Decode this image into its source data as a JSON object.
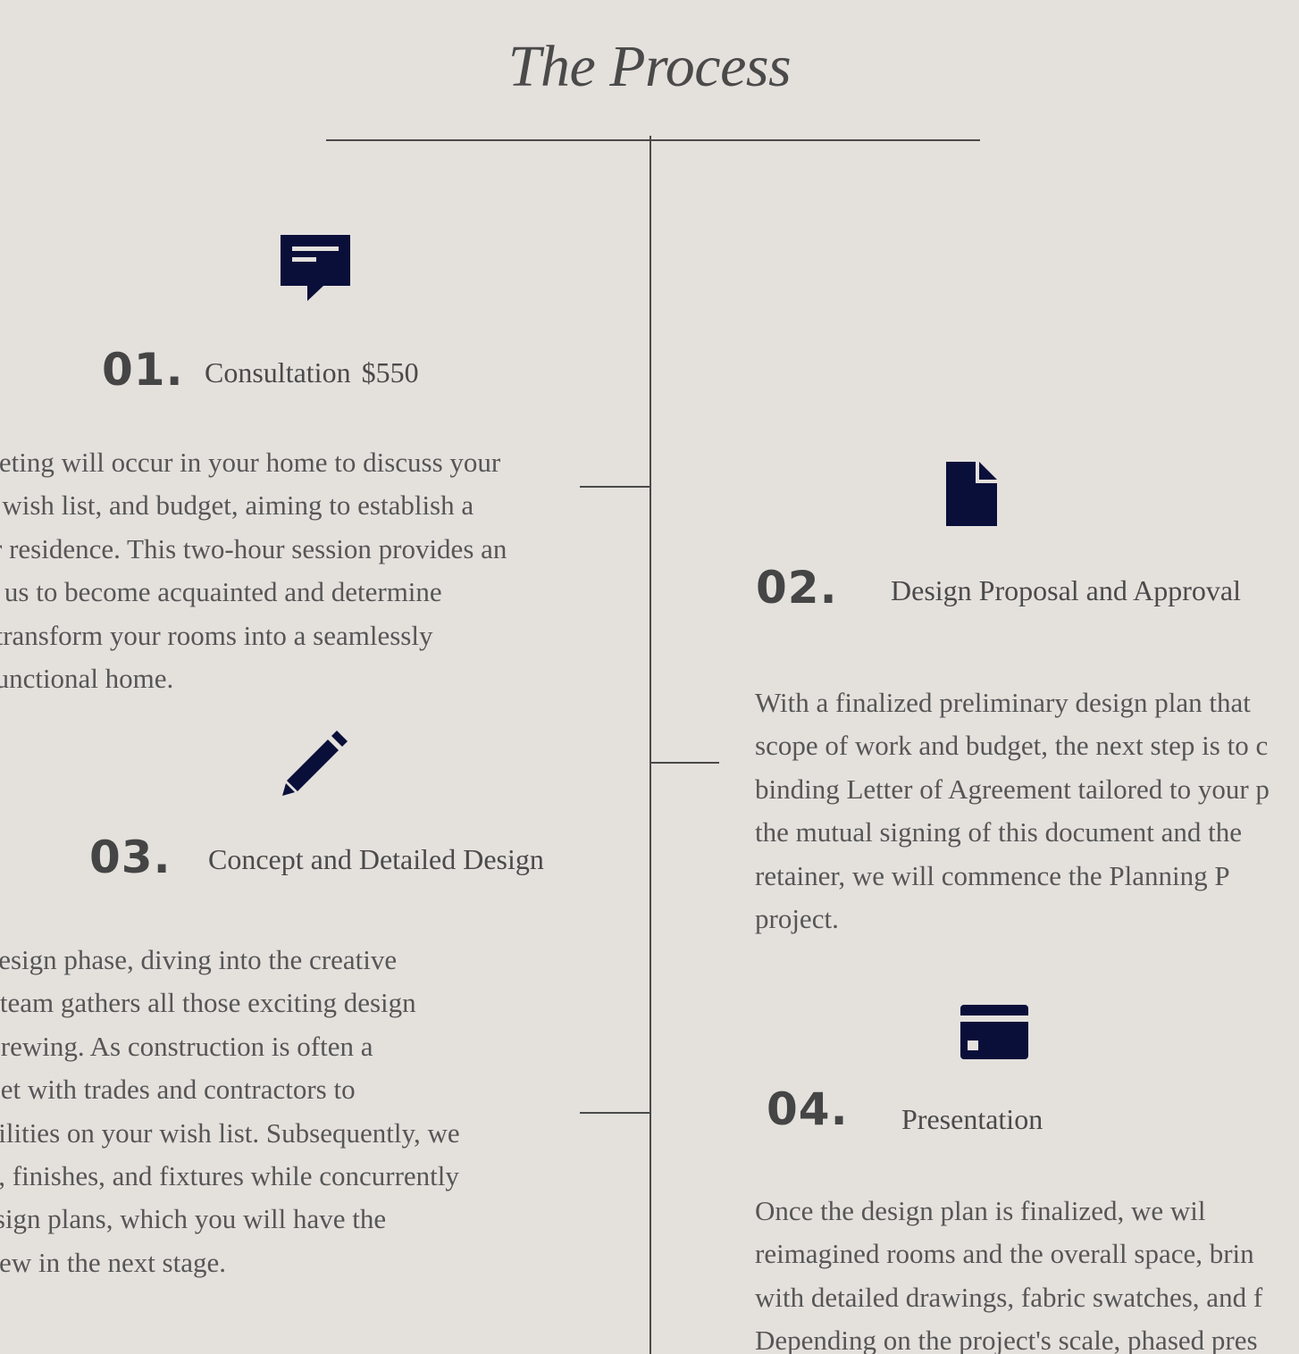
{
  "page": {
    "title": "The Process"
  },
  "colors": {
    "background": "#e4e1dd",
    "icon": "#0a0f3a",
    "text": "#555555",
    "line": "#4a4a4a"
  },
  "steps": [
    {
      "number": "01.",
      "heading": "Consultation",
      "price": "$550",
      "icon": "message-icon",
      "lines": [
        "meeting will occur in your home to discuss your",
        "es, wish list, and budget, aiming to establish a",
        "our residence. This two-hour session provides an",
        "for us to become acquainted and determine",
        "ill transform your rooms into a seamlessly",
        "d functional home."
      ]
    },
    {
      "number": "02.",
      "heading": "Design Proposal and Approval",
      "icon": "document-icon",
      "lines": [
        "With a finalized preliminary design plan that",
        "scope of work and budget, the next step is to c",
        "binding Letter of Agreement tailored to your p",
        "the mutual signing of this document and the",
        "retainer, we will commence the Planning P",
        "project."
      ]
    },
    {
      "number": "03.",
      "heading": "Concept and Detailed Design",
      "icon": "pencil-icon",
      "lines": [
        "f the design phase, diving into the creative",
        "re our team gathers all those exciting design",
        "been brewing. As construction is often a",
        "we meet with trades and contractors to",
        "possibilities on your wish list. Subsequently, we",
        "shings, finishes, and fixtures while concurrently",
        "the design plans, which you will have the",
        "to review in the next stage."
      ]
    },
    {
      "number": "04.",
      "heading": "Presentation",
      "icon": "credit-card-icon",
      "lines": [
        "Once the design plan is finalized, we wil",
        "reimagined rooms and the overall space, brin",
        "with detailed drawings, fabric swatches, and f",
        "Depending on the project's scale, phased pres"
      ]
    }
  ]
}
